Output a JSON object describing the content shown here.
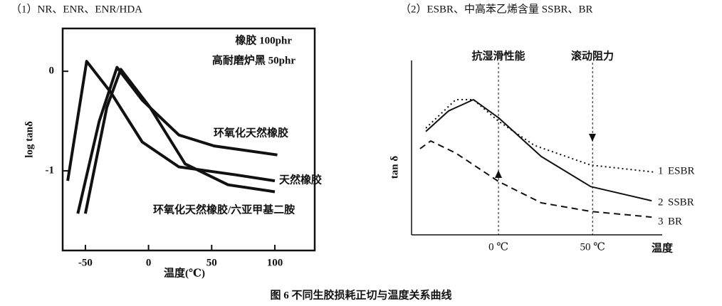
{
  "caption": "图 6 不同生胶损耗正切与温度关系曲线",
  "chart_data": [
    {
      "type": "line",
      "title": "（1）NR、ENR、ENR/HDA",
      "x_label": "温度(℃)",
      "y_label": "log tanδ",
      "annotations": [
        "橡胶 100phr",
        "高耐磨炉黑 50phr"
      ],
      "xlim": [
        -68,
        131.6
      ],
      "ylim": [
        -1.8,
        0.43
      ],
      "xticks": [
        -50,
        0,
        50,
        100
      ],
      "yticks": [
        -1,
        0
      ],
      "series": [
        {
          "name": "天然橡胶",
          "color": "#111111",
          "style": "solid",
          "x": [
            -64,
            -49,
            -30,
            -5,
            24,
            69,
            100
          ],
          "values": [
            -1.1,
            0.1,
            -0.21,
            -0.71,
            -0.96,
            -1.04,
            -1.1
          ]
        },
        {
          "name": "环氧化天然橡胶",
          "color": "#111111",
          "style": "solid",
          "x": [
            -56,
            -39,
            -25,
            -5,
            24,
            52,
            102
          ],
          "values": [
            -1.43,
            -0.5,
            0.04,
            -0.29,
            -0.64,
            -0.75,
            -0.84
          ]
        },
        {
          "name": "环氧化天然橡胶/六亚甲基二胺",
          "color": "#111111",
          "style": "solid",
          "x": [
            -50,
            -33,
            -22,
            1,
            29,
            63,
            100
          ],
          "values": [
            -1.43,
            -0.36,
            0.02,
            -0.36,
            -0.93,
            -1.14,
            -1.21
          ]
        }
      ]
    },
    {
      "type": "line",
      "title": "（2）ESBR、中高苯乙烯含量 SSBR、BR",
      "x_label": "温度",
      "y_label": "tan δ",
      "annotations": [
        "抗湿滑性能",
        "滚动阻力"
      ],
      "xlim": [
        -46.2,
        87
      ],
      "ylim": [
        0,
        1
      ],
      "xticks": [
        {
          "value": 0,
          "label": "0 ℃"
        },
        {
          "value": 50,
          "label": "50 ℃"
        }
      ],
      "series": [
        {
          "name": "ESBR",
          "number": "1",
          "color": "#111111",
          "style": "dotted",
          "x": [
            -38.6,
            -22.7,
            -13.3,
            0,
            19,
            49,
            83
          ],
          "values": [
            0.62,
            0.785,
            0.785,
            0.66,
            0.52,
            0.405,
            0.364
          ]
        },
        {
          "name": "SSBR",
          "number": "2",
          "color": "#111111",
          "style": "solid",
          "x": [
            -38.6,
            -26.5,
            -13.3,
            0,
            22.7,
            49,
            81.4
          ],
          "values": [
            0.6,
            0.72,
            0.785,
            0.68,
            0.455,
            0.28,
            0.198
          ]
        },
        {
          "name": "BR",
          "number": "3",
          "color": "#111111",
          "style": "dashed",
          "x": [
            -41.7,
            -36,
            -22.7,
            0,
            22.7,
            49,
            81.4
          ],
          "values": [
            0.5,
            0.545,
            0.475,
            0.31,
            0.186,
            0.136,
            0.103
          ]
        }
      ]
    }
  ]
}
